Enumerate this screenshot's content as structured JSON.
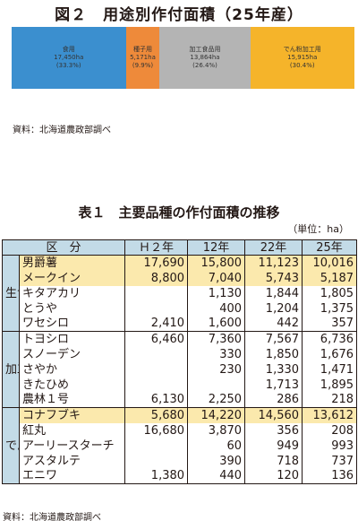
{
  "figure": {
    "title": "図２　用途別作付面積（25年産）",
    "segments": [
      {
        "label": "食用",
        "area": "17,450ha",
        "share": "(33.3%)",
        "pct": 33.3,
        "color": "#3b8fcf"
      },
      {
        "label": "種子用",
        "area": "5,171ha",
        "share": "(9.9%)",
        "pct": 9.9,
        "color": "#ee8a3a"
      },
      {
        "label": "加工食品用",
        "area": "13,864ha",
        "share": "(26.4%)",
        "pct": 26.4,
        "color": "#b4b4b4"
      },
      {
        "label": "でん粉加工用",
        "area": "15,915ha",
        "share": "(30.4%)",
        "pct": 30.4,
        "color": "#f5b42a"
      }
    ],
    "source": "資料：北海道農政部調べ"
  },
  "table": {
    "title": "表１　主要品種の作付面積の推移",
    "unit": "（単位：ha）",
    "headers": [
      "区　分",
      "Ｈ２年",
      "12年",
      "22年",
      "25年"
    ],
    "groups": [
      {
        "category": "生食用",
        "rows": [
          {
            "name": "男爵薯",
            "values": [
              "17,690",
              "15,800",
              "11,123",
              "10,016"
            ],
            "highlight": true
          },
          {
            "name": "メークイン",
            "values": [
              "8,800",
              "7,040",
              "5,743",
              "5,187"
            ],
            "highlight": true
          },
          {
            "name": "キタアカリ",
            "values": [
              "",
              "1,130",
              "1,844",
              "1,805"
            ],
            "highlight": false
          },
          {
            "name": "とうや",
            "values": [
              "",
              "400",
              "1,204",
              "1,375"
            ],
            "highlight": false
          },
          {
            "name": "ワセシロ",
            "values": [
              "2,410",
              "1,600",
              "442",
              "357"
            ],
            "highlight": false
          }
        ]
      },
      {
        "category": "加工用",
        "rows": [
          {
            "name": "トヨシロ",
            "values": [
              "6,460",
              "7,360",
              "7,567",
              "6,736"
            ],
            "highlight": false
          },
          {
            "name": "スノーデン",
            "values": [
              "",
              "330",
              "1,850",
              "1,676"
            ],
            "highlight": false
          },
          {
            "name": "さやか",
            "values": [
              "",
              "230",
              "1,330",
              "1,471"
            ],
            "highlight": false
          },
          {
            "name": "きたひめ",
            "values": [
              "",
              "",
              "1,713",
              "1,895"
            ],
            "highlight": false
          },
          {
            "name": "農林１号",
            "values": [
              "6,130",
              "2,250",
              "286",
              "218"
            ],
            "highlight": false
          }
        ]
      },
      {
        "category": "でん粉原料用",
        "rows": [
          {
            "name": "コナフブキ",
            "values": [
              "5,680",
              "14,220",
              "14,560",
              "13,612"
            ],
            "highlight": true
          },
          {
            "name": "紅丸",
            "values": [
              "16,680",
              "3,870",
              "356",
              "208"
            ],
            "highlight": false
          },
          {
            "name": "アーリースターチ",
            "values": [
              "",
              "60",
              "949",
              "993"
            ],
            "highlight": false
          },
          {
            "name": "アスタルテ",
            "values": [
              "",
              "390",
              "718",
              "737"
            ],
            "highlight": false
          },
          {
            "name": "エニワ",
            "values": [
              "1,380",
              "440",
              "120",
              "136"
            ],
            "highlight": false
          }
        ]
      }
    ],
    "source": "資料：北海道農政部調べ"
  }
}
